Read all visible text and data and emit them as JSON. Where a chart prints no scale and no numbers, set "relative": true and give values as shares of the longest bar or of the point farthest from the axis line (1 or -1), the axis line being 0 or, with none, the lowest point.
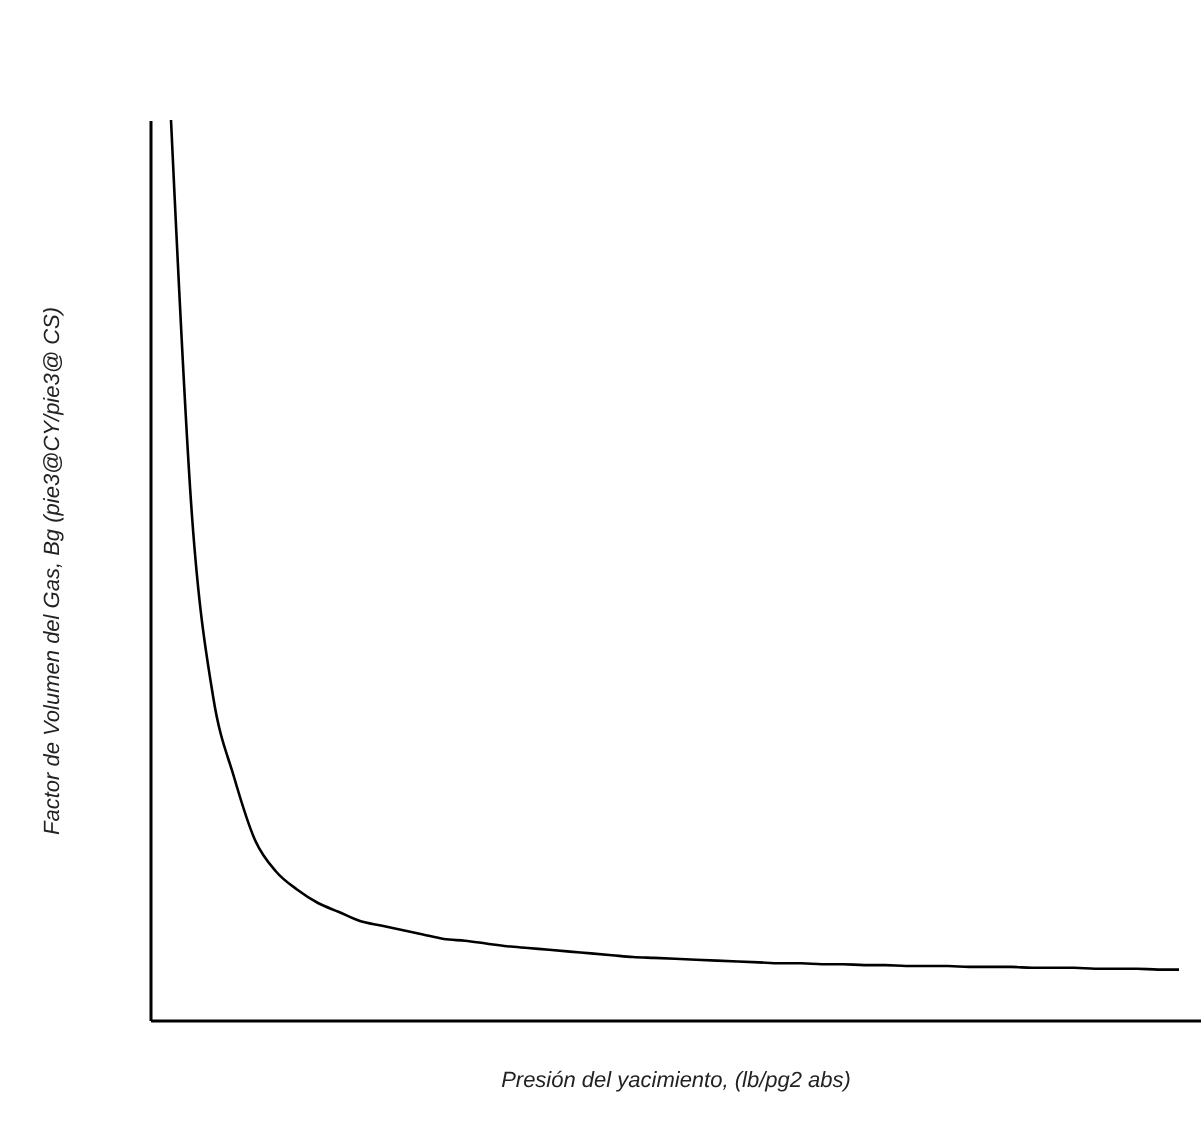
{
  "chart_data": {
    "type": "line",
    "relative": true,
    "xlabel": "Presión del yacimiento, (lb/pg2 abs)",
    "ylabel": "Factor de Volumen del Gas, Bg  (pie3@CY/pie3@ CS)",
    "categories": [
      null,
      null,
      null,
      null,
      null,
      null,
      null,
      null,
      null,
      null,
      null,
      null,
      null,
      null,
      null,
      null,
      null,
      null,
      null,
      null,
      null,
      null,
      null,
      null,
      null,
      null,
      null,
      null,
      null,
      null,
      null,
      null,
      null,
      null,
      null,
      null,
      null,
      null,
      null,
      null,
      null,
      null,
      null,
      null,
      null,
      null,
      null,
      null,
      null
    ],
    "series": [
      {
        "color": "#000000",
        "values": [
          1.0,
          0.56,
          0.36,
          0.27,
          0.2,
          0.165,
          0.145,
          0.13,
          0.12,
          0.11,
          0.105,
          0.1,
          0.095,
          0.09,
          0.088,
          0.085,
          0.082,
          0.08,
          0.078,
          0.076,
          0.074,
          0.072,
          0.07,
          0.069,
          0.068,
          0.067,
          0.066,
          0.065,
          0.064,
          0.063,
          0.063,
          0.062,
          0.062,
          0.061,
          0.061,
          0.06,
          0.06,
          0.06,
          0.059,
          0.059,
          0.059,
          0.058,
          0.058,
          0.058,
          0.057,
          0.057,
          0.057,
          0.056,
          0.056
        ]
      }
    ]
  }
}
